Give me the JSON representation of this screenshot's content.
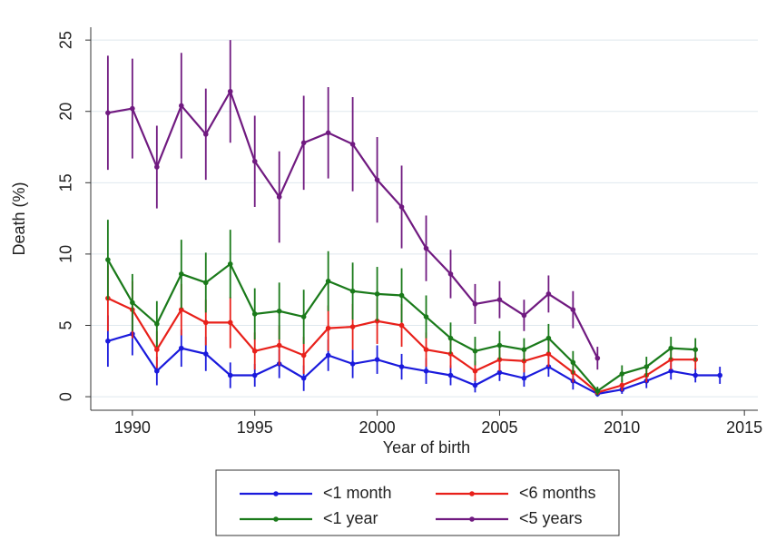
{
  "chart_data": {
    "type": "line",
    "x_label": "Year of birth",
    "y_label": "Death (%)",
    "x": [
      1989,
      1990,
      1991,
      1992,
      1993,
      1994,
      1995,
      1996,
      1997,
      1998,
      1999,
      2000,
      2001,
      2002,
      2003,
      2004,
      2005,
      2006,
      2007,
      2008,
      2009,
      2010,
      2011,
      2012,
      2013,
      2014
    ],
    "series": [
      {
        "name": "<1 month",
        "color": "#1a1adc",
        "values": [
          3.9,
          4.4,
          1.8,
          3.4,
          3.0,
          1.5,
          1.5,
          2.3,
          1.3,
          2.9,
          2.3,
          2.6,
          2.1,
          1.8,
          1.5,
          0.8,
          1.7,
          1.3,
          2.1,
          1.1,
          0.2,
          0.5,
          1.1,
          1.8,
          1.5,
          1.5
        ],
        "errors": [
          1.8,
          1.5,
          1.0,
          1.3,
          1.2,
          0.9,
          0.8,
          1.0,
          0.9,
          1.1,
          1.0,
          1.0,
          0.9,
          0.9,
          0.7,
          0.5,
          0.6,
          0.6,
          0.7,
          0.6,
          0.2,
          0.3,
          0.5,
          0.6,
          0.5,
          0.6
        ]
      },
      {
        "name": "<6 months",
        "color": "#e8201a",
        "values": [
          6.9,
          6.1,
          3.3,
          6.1,
          5.2,
          5.2,
          3.2,
          3.6,
          2.9,
          4.8,
          4.9,
          5.3,
          5.0,
          3.3,
          3.0,
          1.8,
          2.6,
          2.5,
          3.0,
          1.7,
          0.3,
          0.8,
          1.5,
          2.6,
          2.6,
          null
        ],
        "errors": [
          2.3,
          2.0,
          1.3,
          1.8,
          1.6,
          1.8,
          1.3,
          1.4,
          1.3,
          1.6,
          1.6,
          1.6,
          1.5,
          1.2,
          1.0,
          0.7,
          0.8,
          0.8,
          0.9,
          0.7,
          0.2,
          0.4,
          0.5,
          0.7,
          0.7,
          null
        ]
      },
      {
        "name": "<1 year",
        "color": "#1a7a1a",
        "values": [
          9.6,
          6.6,
          5.1,
          8.6,
          8.0,
          9.3,
          5.8,
          6.0,
          5.6,
          8.1,
          7.4,
          7.2,
          7.1,
          5.6,
          4.1,
          3.2,
          3.6,
          3.3,
          4.1,
          2.4,
          0.4,
          1.6,
          2.1,
          3.4,
          3.3,
          null
        ],
        "errors": [
          2.8,
          2.0,
          1.6,
          2.4,
          2.1,
          2.4,
          1.8,
          2.0,
          1.9,
          2.1,
          2.0,
          1.9,
          1.9,
          1.5,
          1.1,
          1.0,
          1.0,
          0.8,
          1.0,
          0.8,
          0.3,
          0.6,
          0.7,
          0.8,
          0.8,
          null
        ]
      },
      {
        "name": "<5 years",
        "color": "#701a80",
        "values": [
          19.9,
          20.2,
          16.1,
          20.4,
          18.4,
          21.4,
          16.5,
          14.0,
          17.8,
          18.5,
          17.7,
          15.2,
          13.3,
          10.4,
          8.6,
          6.5,
          6.8,
          5.7,
          7.2,
          6.1,
          2.7,
          null,
          null,
          null,
          null,
          null
        ],
        "errors": [
          4.0,
          3.5,
          2.9,
          3.7,
          3.2,
          3.6,
          3.2,
          3.2,
          3.3,
          3.2,
          3.3,
          3.0,
          2.9,
          2.3,
          1.7,
          1.4,
          1.3,
          1.1,
          1.3,
          1.3,
          0.8,
          null,
          null,
          null,
          null,
          null
        ]
      }
    ],
    "xlim": [
      1988.3,
      2015.55
    ],
    "ylim": [
      -0.95,
      25.9
    ],
    "xticks": [
      1990,
      1995,
      2000,
      2005,
      2010,
      2015
    ],
    "yticks": [
      0,
      5,
      10,
      15,
      20,
      25
    ],
    "grid": true,
    "legend": "bottom"
  }
}
